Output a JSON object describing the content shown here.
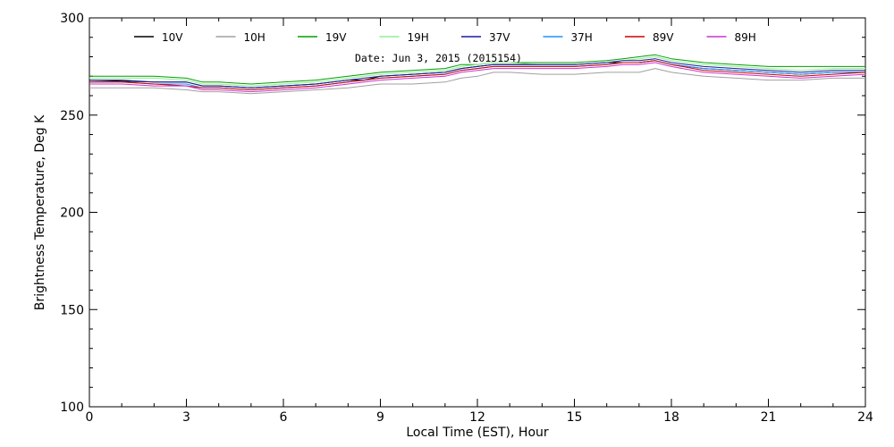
{
  "chart_data": {
    "type": "line",
    "annotation": "Date: Jun  3, 2015 (2015154)",
    "xlabel": "Local Time (EST), Hour",
    "ylabel": "Brightness Temperature, Deg  K",
    "xlim": [
      0,
      24
    ],
    "ylim": [
      100,
      300
    ],
    "x_ticks": [
      0,
      3,
      6,
      9,
      12,
      15,
      18,
      21,
      24
    ],
    "y_ticks": [
      100,
      150,
      200,
      250,
      300
    ],
    "grid": false,
    "legend_position": "top",
    "x": [
      0,
      1,
      2,
      3,
      3.5,
      4,
      5,
      6,
      7,
      8,
      8.5,
      9,
      10,
      11,
      11.5,
      12,
      12.5,
      13,
      14,
      15,
      16,
      16.5,
      17,
      17.5,
      18,
      19,
      20,
      21,
      22,
      23,
      24
    ],
    "series": [
      {
        "name": "10V",
        "color": "#000000",
        "values": [
          268,
          267.5,
          267,
          267,
          265,
          265,
          264,
          265,
          266,
          268,
          268,
          270,
          271,
          272,
          274,
          275,
          276,
          276,
          276,
          276,
          277,
          277,
          277,
          278,
          276,
          274,
          273,
          272,
          271,
          272,
          272
        ]
      },
      {
        "name": "10H",
        "color": "#a0a0a0",
        "values": [
          264,
          264,
          264,
          263,
          262,
          262,
          261,
          262,
          263,
          264,
          265,
          266,
          266,
          267,
          269,
          270,
          272,
          272,
          271,
          271,
          272,
          272,
          272,
          274,
          272,
          270,
          269,
          268,
          268,
          269,
          269
        ]
      },
      {
        "name": "19V",
        "color": "#00a000",
        "values": [
          270,
          270,
          270,
          269,
          267,
          267,
          266,
          267,
          268,
          270,
          271,
          272,
          273,
          274,
          276,
          276,
          277,
          277,
          277,
          277,
          278,
          279,
          280,
          281,
          279,
          277,
          276,
          275,
          275,
          275,
          275
        ]
      },
      {
        "name": "19H",
        "color": "#90ee90",
        "values": [
          269,
          269,
          269,
          268,
          266,
          266,
          265,
          266,
          267,
          269,
          270,
          271,
          272,
          273,
          275,
          276,
          277,
          277,
          276,
          276,
          277,
          278,
          279,
          280,
          278,
          276,
          275,
          274,
          273,
          274,
          274
        ]
      },
      {
        "name": "37V",
        "color": "#1a1aa0",
        "values": [
          268,
          268,
          267,
          267,
          265,
          265,
          264,
          265,
          266,
          268,
          269,
          270,
          271,
          272,
          274,
          275,
          276,
          276,
          276,
          276,
          277,
          278,
          278,
          279,
          277,
          275,
          274,
          273,
          272,
          273,
          273
        ]
      },
      {
        "name": "37H",
        "color": "#1e90ff",
        "values": [
          267,
          267,
          266,
          266,
          264,
          264,
          263,
          264,
          265,
          267,
          268,
          269,
          270,
          271,
          273,
          274,
          275,
          275,
          275,
          275,
          276,
          277,
          277,
          278,
          276,
          274,
          273,
          272,
          271,
          272,
          272
        ]
      },
      {
        "name": "89V",
        "color": "#cc0000",
        "values": [
          267,
          267,
          266,
          265,
          264,
          264,
          263,
          264,
          265,
          267,
          268,
          269,
          270,
          271,
          273,
          274,
          275,
          275,
          275,
          275,
          276,
          277,
          277,
          278,
          276,
          273,
          272,
          271,
          270,
          271,
          272
        ]
      },
      {
        "name": "89H",
        "color": "#cc33cc",
        "values": [
          266,
          266,
          265,
          265,
          263,
          263,
          262,
          263,
          264,
          266,
          267,
          268,
          269,
          270,
          272,
          273,
          274,
          274,
          274,
          274,
          275,
          276,
          276,
          277,
          275,
          272,
          271,
          270,
          269,
          270,
          271
        ]
      }
    ]
  }
}
